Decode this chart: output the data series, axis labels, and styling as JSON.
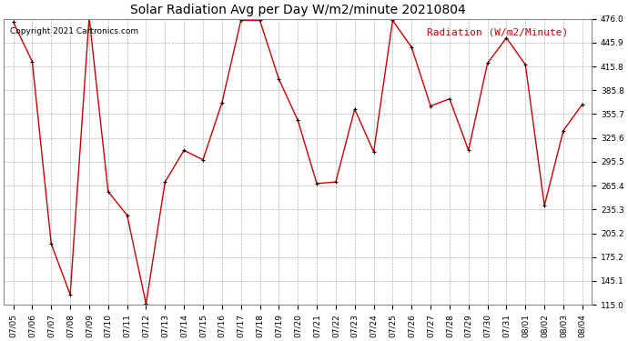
{
  "title": "Solar Radiation Avg per Day W/m2/minute 20210804",
  "copyright": "Copyright 2021 Cartronics.com",
  "legend_label": "Radiation (W/m2/Minute)",
  "dates": [
    "07/05",
    "07/06",
    "07/07",
    "07/08",
    "07/09",
    "07/10",
    "07/11",
    "07/12",
    "07/13",
    "07/14",
    "07/15",
    "07/16",
    "07/17",
    "07/18",
    "07/19",
    "07/20",
    "07/21",
    "07/22",
    "07/23",
    "07/24",
    "07/25",
    "07/26",
    "07/27",
    "07/28",
    "07/29",
    "07/30",
    "07/31",
    "08/01",
    "08/02",
    "08/03",
    "08/04"
  ],
  "values": [
    472,
    422,
    192,
    128,
    478,
    258,
    228,
    116,
    270,
    310,
    298,
    370,
    474,
    474,
    400,
    348,
    268,
    270,
    362,
    308,
    474,
    440,
    366,
    375,
    310,
    420,
    452,
    418,
    240,
    335,
    368
  ],
  "line_color": "#cc0000",
  "marker_color": "#000000",
  "bg_color": "#ffffff",
  "grid_color": "#aaaaaa",
  "ylim_min": 115.0,
  "ylim_max": 476.0,
  "yticks": [
    115.0,
    145.1,
    175.2,
    205.2,
    235.3,
    265.4,
    295.5,
    325.6,
    355.7,
    385.8,
    415.8,
    445.9,
    476.0
  ],
  "title_fontsize": 10,
  "copyright_fontsize": 6.5,
  "legend_fontsize": 8,
  "tick_fontsize": 6.5
}
